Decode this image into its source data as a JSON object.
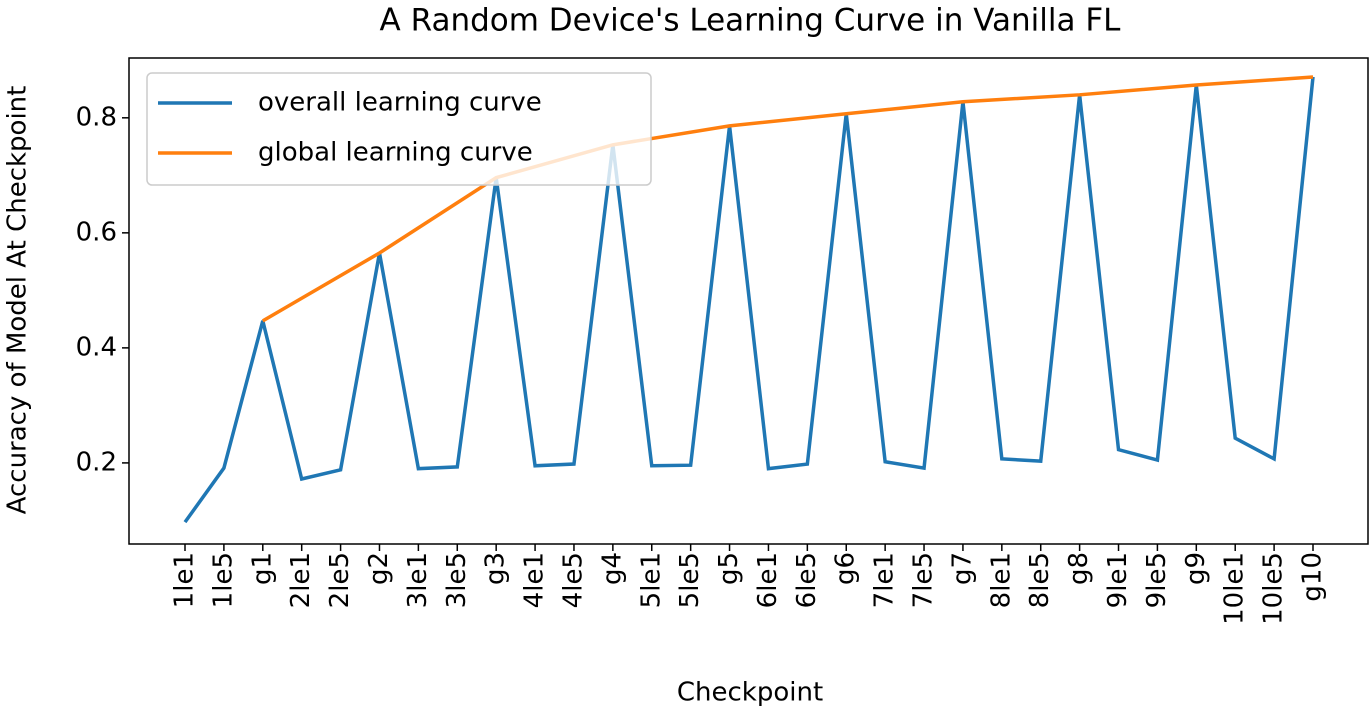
{
  "chart_data": {
    "type": "line",
    "title": "A Random Device's Learning Curve in Vanilla FL",
    "x_label": "Checkpoint",
    "y_label": "Accuracy of Model At Checkpoint",
    "categories": [
      "1le1",
      "1le5",
      "g1",
      "2le1",
      "2le5",
      "g2",
      "3le1",
      "3le5",
      "g3",
      "4le1",
      "4le5",
      "g4",
      "5le1",
      "5le5",
      "g5",
      "6le1",
      "6le5",
      "g6",
      "7le1",
      "7le5",
      "g7",
      "8le1",
      "8le5",
      "g8",
      "9le1",
      "9le5",
      "g9",
      "10le1",
      "10le5",
      "g10"
    ],
    "series": [
      {
        "name": "overall learning curve",
        "color": "#1f77b4",
        "values": [
          0.097,
          0.191,
          0.447,
          0.172,
          0.188,
          0.565,
          0.19,
          0.193,
          0.696,
          0.195,
          0.198,
          0.753,
          0.195,
          0.196,
          0.786,
          0.19,
          0.198,
          0.807,
          0.202,
          0.191,
          0.828,
          0.207,
          0.203,
          0.84,
          0.223,
          0.205,
          0.857,
          0.243,
          0.207,
          0.871
        ]
      },
      {
        "name": "global learning curve",
        "color": "#ff7f0e",
        "x": [
          "g1",
          "g2",
          "g3",
          "g4",
          "g5",
          "g6",
          "g7",
          "g8",
          "g9",
          "g10"
        ],
        "values": [
          0.447,
          0.565,
          0.696,
          0.753,
          0.786,
          0.807,
          0.828,
          0.84,
          0.857,
          0.871
        ]
      }
    ],
    "ylim": [
      0.059,
      0.904
    ],
    "yticks": [
      0.2,
      0.4,
      0.6,
      0.8
    ],
    "grid": false,
    "legend": "upper left"
  }
}
